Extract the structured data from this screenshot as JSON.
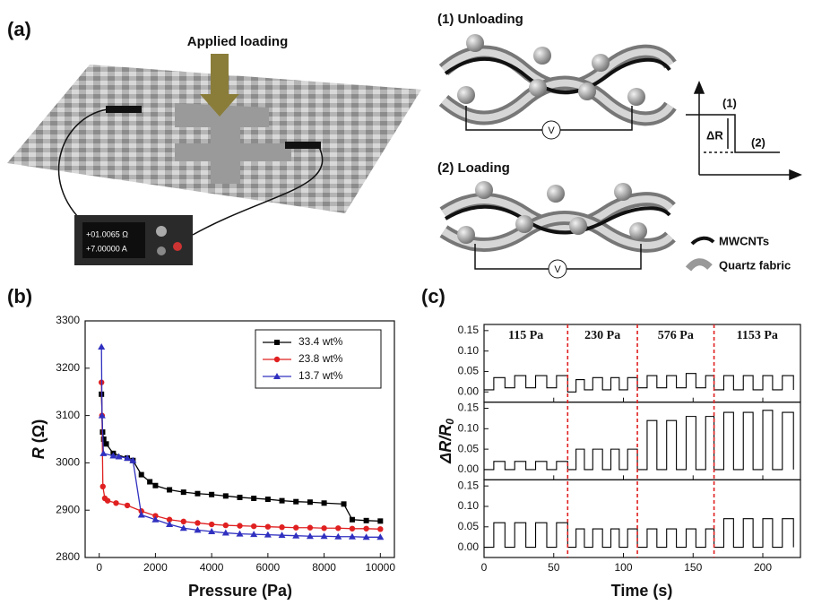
{
  "panel_a": {
    "label": "(a)",
    "applied": "Applied loading",
    "meter_top": "+01.0065 Ω",
    "meter_bottom": "+7.00000 A",
    "unloading": "(1) Unloading",
    "loading": "(2) Loading",
    "voltmeter_1": "V",
    "voltmeter_2": "V",
    "step_1": "(1)",
    "step_delta": "ΔR",
    "step_2": "(2)",
    "legend_cnt": "MWCNTs",
    "legend_fabric": "Quartz fabric"
  },
  "chart_data": [
    {
      "type": "line",
      "label": "(b)",
      "x_label": "Pressure (Pa)",
      "y_label_var": "R",
      "y_label_unit": " (Ω)",
      "xlim": [
        -500,
        10500
      ],
      "xticks": [
        0,
        2000,
        4000,
        6000,
        8000,
        10000
      ],
      "ylim": [
        2800,
        3300
      ],
      "yticks": [
        2800,
        2900,
        3000,
        3100,
        3200,
        3300
      ],
      "legend": "upper right",
      "series": [
        {
          "name": "33.4 wt%",
          "color": "#000000",
          "marker": "square",
          "x": [
            80,
            120,
            160,
            250,
            500,
            1000,
            1200,
            1500,
            1800,
            2000,
            2500,
            3000,
            3500,
            4000,
            4500,
            5000,
            5500,
            6000,
            6500,
            7000,
            7500,
            8000,
            8700,
            9000,
            9500,
            10000
          ],
          "values": [
            3145,
            3065,
            3050,
            3040,
            3020,
            3010,
            3005,
            2975,
            2960,
            2952,
            2943,
            2938,
            2935,
            2933,
            2930,
            2927,
            2925,
            2923,
            2920,
            2918,
            2917,
            2915,
            2913,
            2880,
            2878,
            2877
          ]
        },
        {
          "name": "23.8 wt%",
          "color": "#e02020",
          "marker": "circle",
          "x": [
            80,
            100,
            130,
            200,
            300,
            600,
            1000,
            1500,
            2000,
            2500,
            3000,
            3500,
            4000,
            4500,
            5000,
            5500,
            6000,
            6500,
            7000,
            7500,
            8000,
            8500,
            9000,
            9500,
            10000
          ],
          "values": [
            3170,
            3100,
            2950,
            2925,
            2920,
            2915,
            2910,
            2898,
            2888,
            2880,
            2876,
            2873,
            2870,
            2868,
            2867,
            2866,
            2865,
            2864,
            2863,
            2863,
            2862,
            2862,
            2861,
            2861,
            2860
          ]
        },
        {
          "name": "13.7 wt%",
          "color": "#3030c0",
          "marker": "triangle",
          "x": [
            80,
            100,
            150,
            500,
            700,
            1000,
            1200,
            1500,
            2000,
            2500,
            3000,
            3500,
            4000,
            4500,
            5000,
            5500,
            6000,
            6500,
            7000,
            7500,
            8000,
            8500,
            9000,
            9500,
            10000
          ],
          "values": [
            3245,
            3100,
            3020,
            3015,
            3013,
            3010,
            3005,
            2890,
            2880,
            2870,
            2862,
            2858,
            2855,
            2852,
            2850,
            2849,
            2848,
            2847,
            2846,
            2845,
            2845,
            2844,
            2844,
            2843,
            2843
          ]
        }
      ]
    },
    {
      "type": "step",
      "label": "(c)",
      "x_label": "Time (s)",
      "y_label_main": "ΔR/R",
      "y_label_sub": "0",
      "xlim": [
        0,
        227
      ],
      "xticks": [
        0,
        50,
        100,
        150,
        200
      ],
      "ylim": [
        -0.025,
        0.165
      ],
      "yticks": [
        {
          "value": 0,
          "label": "0.00"
        },
        {
          "value": 0.05,
          "label": "0.05"
        },
        {
          "value": 0.1,
          "label": "0.10"
        },
        {
          "value": 0.15,
          "label": "0.15"
        }
      ],
      "vlines": [
        60,
        110,
        165
      ],
      "vline_color": "#e02020",
      "pressure_labels": [
        "115 Pa",
        "230 Pa",
        "576 Pa",
        "1153 Pa"
      ],
      "x": [
        0,
        7,
        15,
        22,
        30,
        37,
        45,
        52,
        60,
        66,
        72,
        78,
        85,
        91,
        97,
        103,
        110,
        117,
        124,
        131,
        138,
        145,
        152,
        159,
        165,
        172,
        179,
        186,
        193,
        200,
        207,
        214,
        222
      ],
      "series": [
        {
          "color": "#000000",
          "values": [
            0.005,
            0.035,
            0.01,
            0.04,
            0.01,
            0.04,
            0.01,
            0.04,
            0.0,
            0.03,
            0.005,
            0.035,
            0.005,
            0.035,
            0.005,
            0.035,
            0.01,
            0.04,
            0.01,
            0.04,
            0.01,
            0.045,
            0.01,
            0.04,
            0.005,
            0.04,
            0.005,
            0.04,
            0.005,
            0.04,
            0.005,
            0.04,
            0.005
          ]
        },
        {
          "color": "#000000",
          "values": [
            0.0,
            0.02,
            0.0,
            0.02,
            0.0,
            0.02,
            0.0,
            0.02,
            0.0,
            0.05,
            0.0,
            0.05,
            0.0,
            0.05,
            0.0,
            0.05,
            0.0,
            0.12,
            0.0,
            0.12,
            0.0,
            0.13,
            0.0,
            0.13,
            0.0,
            0.14,
            0.0,
            0.14,
            0.0,
            0.145,
            0.0,
            0.14,
            0.0
          ]
        },
        {
          "color": "#000000",
          "values": [
            0.0,
            0.06,
            0.0,
            0.06,
            0.0,
            0.06,
            0.0,
            0.06,
            0.0,
            0.045,
            0.0,
            0.045,
            0.0,
            0.045,
            0.0,
            0.045,
            0.0,
            0.045,
            0.0,
            0.045,
            0.0,
            0.045,
            0.0,
            0.045,
            0.0,
            0.07,
            0.0,
            0.07,
            0.0,
            0.07,
            0.0,
            0.07,
            0.0
          ]
        }
      ]
    }
  ]
}
